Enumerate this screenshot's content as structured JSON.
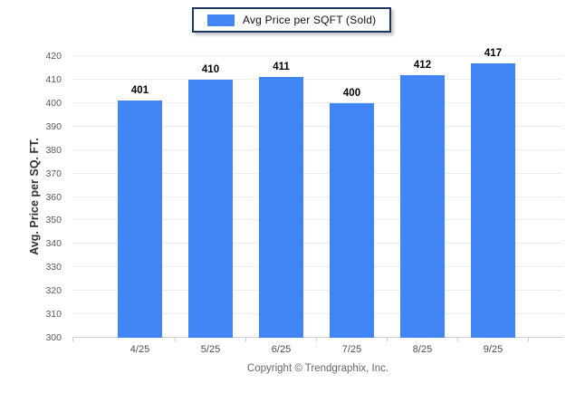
{
  "legend": {
    "label": "Avg Price per SQFT (Sold)"
  },
  "footer": {
    "text": "Copyright © Trendgraphix, Inc."
  },
  "colors": {
    "bar": "#4184f4",
    "legend_border": "#20365c",
    "grid": "#ececec",
    "axis_baseline": "#cfcfcf",
    "tick_text": "#595959",
    "value_label_text": "#000000"
  },
  "chart_data": {
    "type": "bar",
    "categories": [
      "4/25",
      "5/25",
      "6/25",
      "7/25",
      "8/25",
      "9/25"
    ],
    "values": [
      401,
      410,
      411,
      400,
      412,
      417
    ],
    "title": "Avg Price per SQFT (Sold)",
    "xlabel": "",
    "ylabel": "Avg. Price per SQ. FT.",
    "ylim": [
      300,
      420
    ],
    "ytick_step": 10,
    "grid": true,
    "grid_axis": "y",
    "legend_position": "top-center",
    "data_labels": true,
    "bar_color": "#4184f4"
  }
}
